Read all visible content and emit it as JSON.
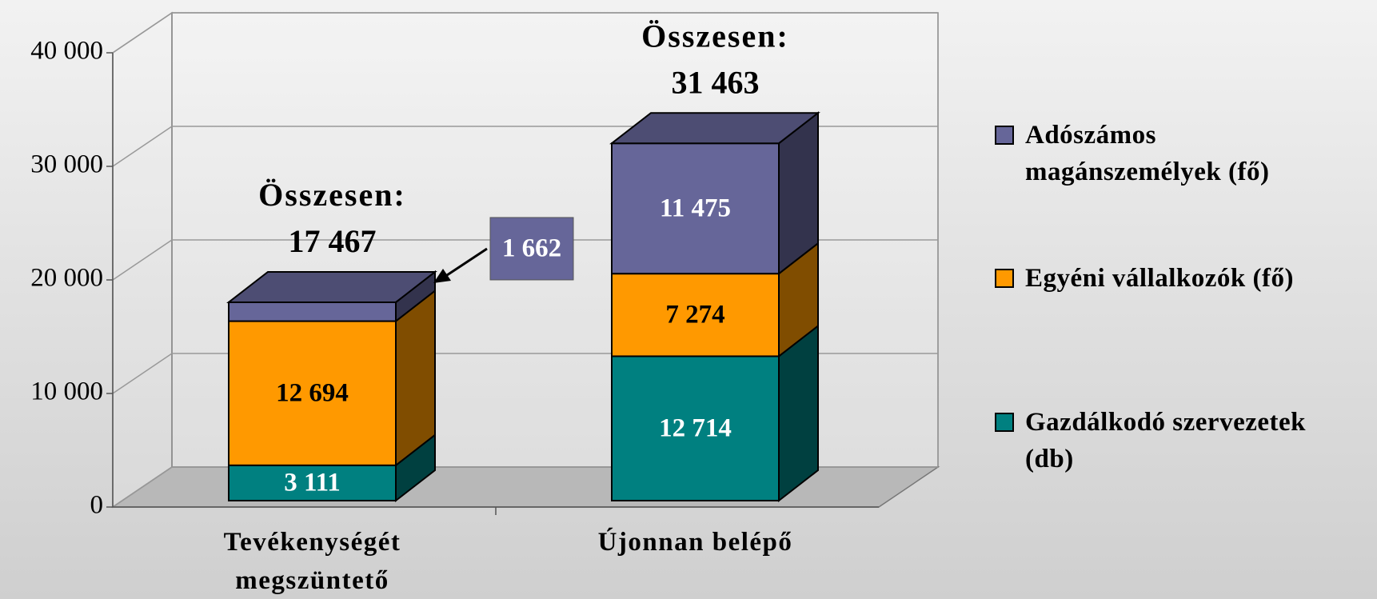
{
  "chart_data": {
    "type": "bar",
    "stacked": true,
    "three_d": true,
    "categories": [
      "Tevékenységét megszüntető",
      "Újonnan belépő"
    ],
    "series": [
      {
        "name": "Gazdálkodó szervezetek (db)",
        "color": "#008080",
        "values": [
          3111,
          12714
        ],
        "value_labels": [
          "3 111",
          "12 714"
        ]
      },
      {
        "name": "Egyéni vállalkozók (fő)",
        "color": "#FF9900",
        "values": [
          12694,
          7274
        ],
        "value_labels": [
          "12 694",
          "7 274"
        ]
      },
      {
        "name": "Adószámos magánszemélyek (fő)",
        "color": "#666699",
        "values": [
          1662,
          11475
        ],
        "value_labels": [
          "1 662",
          "11 475"
        ]
      }
    ],
    "totals": [
      17467,
      31463
    ],
    "total_labels": [
      "17 467",
      "31 463"
    ],
    "total_title": "Összesen:",
    "ylim": [
      0,
      40000
    ],
    "yticks": [
      0,
      {
        "value": 10000,
        "label": "10 000"
      },
      {
        "value": 20000,
        "label": "20 000"
      },
      {
        "value": 30000,
        "label": "30 000"
      },
      {
        "value": 40000,
        "label": "40 000"
      }
    ],
    "grid": true,
    "legend": "right"
  }
}
